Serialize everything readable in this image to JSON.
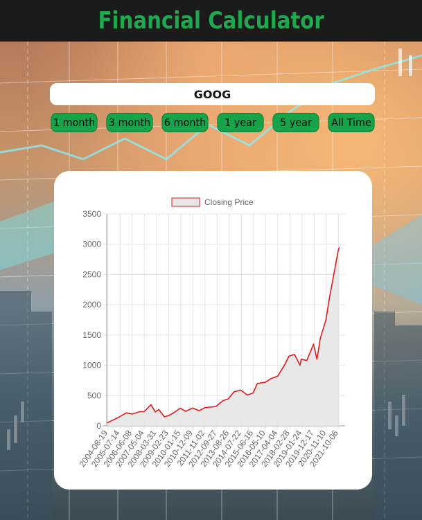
{
  "app": {
    "title": "Financial Calculator"
  },
  "ticker": {
    "value": "GOOG"
  },
  "ranges": [
    "1 month",
    "3 month",
    "6 month",
    "1 year",
    "5 year",
    "All Time"
  ],
  "colors": {
    "accent": "#16a34a",
    "title": "#1fa84f",
    "line": "#e31a1c",
    "fill": "#e6e6e6"
  },
  "chart_data": {
    "type": "line",
    "legend": "Closing Price",
    "ylim": [
      0,
      3500
    ],
    "yticks": [
      0,
      500,
      1000,
      1500,
      2000,
      2500,
      3000,
      3500
    ],
    "categories": [
      "2004-08-19",
      "2005-07-14",
      "2006-06-08",
      "2007-05-04",
      "2008-03-31",
      "2009-02-23",
      "2010-01-15",
      "2010-12-09",
      "2011-11-02",
      "2012-09-27",
      "2013-08-26",
      "2014-07-22",
      "2015-06-16",
      "2016-05-10",
      "2017-04-04",
      "2018-02-28",
      "2019-01-24",
      "2019-12-17",
      "2020-11-10",
      "2021-10-06"
    ],
    "series": [
      {
        "name": "Closing Price",
        "x": [
          "2004-08",
          "2005-01",
          "2005-07",
          "2006-01",
          "2006-06",
          "2007-01",
          "2007-05",
          "2007-11",
          "2008-03",
          "2008-06",
          "2008-11",
          "2009-03",
          "2009-08",
          "2010-01",
          "2010-06",
          "2010-12",
          "2011-06",
          "2011-11",
          "2012-04",
          "2012-09",
          "2013-03",
          "2013-08",
          "2014-01",
          "2014-07",
          "2015-01",
          "2015-06",
          "2015-10",
          "2016-05",
          "2016-10",
          "2017-04",
          "2017-10",
          "2018-02",
          "2018-07",
          "2018-12",
          "2019-01",
          "2019-06",
          "2019-12",
          "2020-03",
          "2020-06",
          "2020-11",
          "2021-02",
          "2021-06",
          "2021-10",
          "2021-11"
        ],
        "values": [
          50,
          95,
          150,
          215,
          195,
          235,
          235,
          350,
          230,
          270,
          150,
          170,
          225,
          290,
          240,
          295,
          250,
          300,
          310,
          320,
          415,
          445,
          560,
          590,
          510,
          540,
          700,
          720,
          780,
          820,
          1000,
          1150,
          1180,
          1000,
          1100,
          1080,
          1350,
          1100,
          1450,
          1750,
          2100,
          2500,
          2900,
          2950
        ]
      }
    ]
  }
}
